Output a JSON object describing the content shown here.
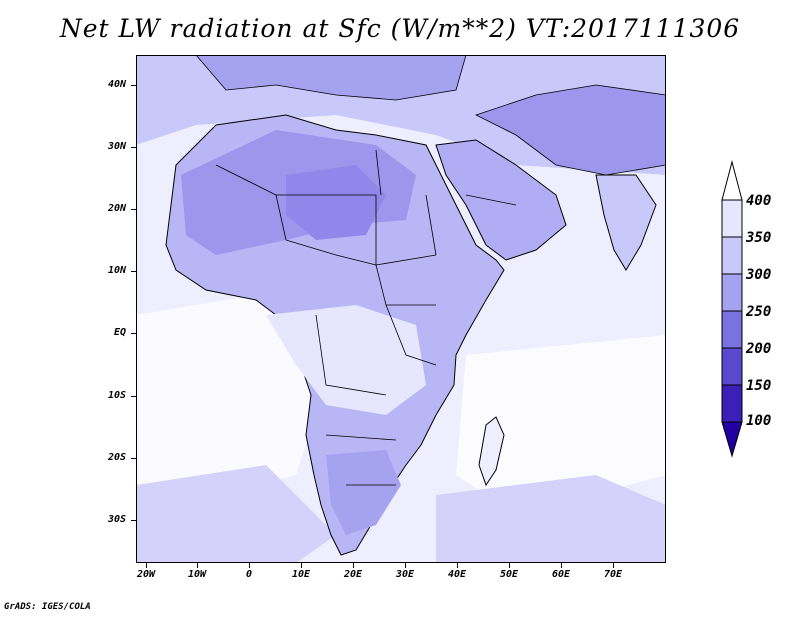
{
  "title": "Net LW radiation at Sfc (W/m**2) VT:2017111306",
  "lat_labels": [
    "40N",
    "30N",
    "20N",
    "10N",
    "EQ",
    "10S",
    "20S",
    "30S"
  ],
  "lon_labels": [
    "20W",
    "10W",
    "0",
    "10E",
    "20E",
    "30E",
    "40E",
    "50E",
    "60E",
    "70E"
  ],
  "colorbar": {
    "labels": [
      "400",
      "350",
      "300",
      "250",
      "200",
      "150",
      "100"
    ],
    "colors": [
      "#ffffff",
      "#e6e6ff",
      "#c8c8fa",
      "#a5a2f0",
      "#7a72e0",
      "#5a48cf",
      "#3a20b8",
      "#2000a0"
    ]
  },
  "footer": "GrADS: IGES/COLA",
  "colors": {
    "high": "#f4f4ff",
    "mid": "#c8c8fa",
    "low": "#a5a2f0",
    "deep": "#8f88ea"
  }
}
